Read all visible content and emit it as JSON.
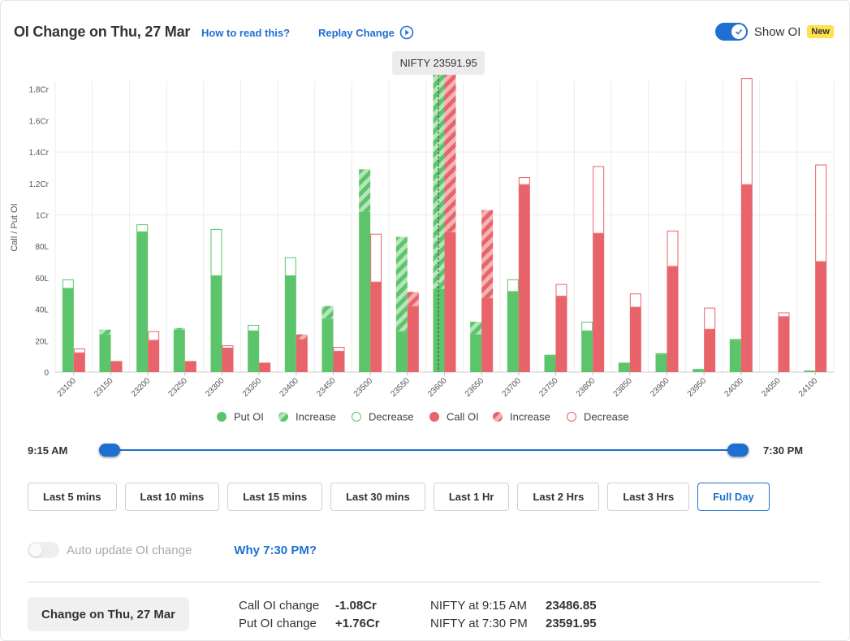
{
  "header": {
    "title": "OI Change on Thu, 27 Mar",
    "how_to_read": "How to read this?",
    "replay": "Replay Change",
    "show_oi_label": "Show OI",
    "new_badge": "New"
  },
  "chart_data": {
    "type": "bar",
    "ylabel": "Call / Put OI",
    "ylim": [
      0,
      18500000
    ],
    "yticks": [
      {
        "label": "0",
        "value": 0
      },
      {
        "label": "20L",
        "value": 2000000
      },
      {
        "label": "40L",
        "value": 4000000
      },
      {
        "label": "60L",
        "value": 6000000
      },
      {
        "label": "80L",
        "value": 8000000
      },
      {
        "label": "1Cr",
        "value": 10000000
      },
      {
        "label": "1.2Cr",
        "value": 12000000
      },
      {
        "label": "1.4Cr",
        "value": 14000000
      },
      {
        "label": "1.6Cr",
        "value": 16000000
      },
      {
        "label": "1.8Cr",
        "value": 18000000
      }
    ],
    "categories": [
      "23100",
      "23150",
      "23200",
      "23250",
      "23300",
      "23350",
      "23400",
      "23450",
      "23500",
      "23550",
      "23600",
      "23650",
      "23700",
      "23750",
      "23800",
      "23850",
      "23900",
      "23950",
      "24000",
      "24050",
      "24100"
    ],
    "series": [
      {
        "name": "Put OI",
        "color": "#5cc46a",
        "base": [
          5300000,
          2400000,
          8900000,
          2700000,
          6100000,
          2600000,
          6100000,
          3400000,
          10200000,
          2600000,
          5300000,
          2400000,
          5100000,
          1000000,
          2600000,
          600000,
          1100000,
          200000,
          2000000,
          0,
          100000
        ],
        "change": [
          600000,
          300000,
          500000,
          100000,
          3000000,
          400000,
          1200000,
          800000,
          2700000,
          6000000,
          14000000,
          800000,
          800000,
          100000,
          600000,
          0,
          100000,
          0,
          100000,
          0,
          0
        ]
      },
      {
        "name": "Call OI",
        "color": "#e8636a",
        "base": [
          1200000,
          700000,
          2000000,
          700000,
          1500000,
          600000,
          2100000,
          1300000,
          5700000,
          4200000,
          8900000,
          4700000,
          11900000,
          4800000,
          8800000,
          4100000,
          6700000,
          2700000,
          11900000,
          3500000,
          7000000
        ],
        "change": [
          300000,
          0,
          600000,
          0,
          200000,
          0,
          300000,
          300000,
          3100000,
          900000,
          10300000,
          5600000,
          500000,
          800000,
          4300000,
          900000,
          2300000,
          1400000,
          6800000,
          300000,
          6200000
        ]
      }
    ],
    "change_type": {
      "put": [
        "decrease",
        "increase",
        "decrease",
        "increase",
        "decrease",
        "decrease",
        "decrease",
        "increase",
        "increase",
        "increase",
        "increase",
        "increase",
        "decrease",
        "decrease",
        "decrease",
        "none",
        "decrease",
        "none",
        "decrease",
        "none",
        "none"
      ],
      "call": [
        "decrease",
        "none",
        "decrease",
        "none",
        "decrease",
        "none",
        "increase",
        "decrease",
        "decrease",
        "increase",
        "increase",
        "increase",
        "decrease",
        "decrease",
        "decrease",
        "decrease",
        "decrease",
        "decrease",
        "decrease",
        "decrease",
        "decrease"
      ]
    },
    "current_price": 23591.95,
    "current_label": "NIFTY 23591.95",
    "legend": [
      {
        "label": "Put OI",
        "kind": "solid",
        "color": "#5cc46a"
      },
      {
        "label": "Increase",
        "kind": "hatch",
        "color": "#5cc46a"
      },
      {
        "label": "Decrease",
        "kind": "outline",
        "color": "#5cc46a"
      },
      {
        "label": "Call OI",
        "kind": "solid",
        "color": "#e8636a"
      },
      {
        "label": "Increase",
        "kind": "hatch",
        "color": "#e8636a"
      },
      {
        "label": "Decrease",
        "kind": "outline",
        "color": "#e8636a"
      }
    ],
    "legend_position": "bottom",
    "grid": true
  },
  "slider": {
    "start": "9:15 AM",
    "end": "7:30 PM",
    "start_fraction": 0,
    "end_fraction": 1
  },
  "range_buttons": [
    {
      "label": "Last 5 mins",
      "active": false
    },
    {
      "label": "Last 10 mins",
      "active": false
    },
    {
      "label": "Last 15 mins",
      "active": false
    },
    {
      "label": "Last 30 mins",
      "active": false
    },
    {
      "label": "Last 1 Hr",
      "active": false
    },
    {
      "label": "Last 2 Hrs",
      "active": false
    },
    {
      "label": "Last 3 Hrs",
      "active": false
    },
    {
      "label": "Full Day",
      "active": true
    }
  ],
  "auto_update": {
    "label": "Auto update OI change",
    "enabled": false,
    "why": "Why 7:30 PM?"
  },
  "summary": {
    "button": "Change on Thu, 27 Mar",
    "call_label": "Call OI change",
    "call_value": "-1.08Cr",
    "put_label": "Put OI change",
    "put_value": "+1.76Cr",
    "start_label": "NIFTY at 9:15 AM",
    "start_value": "23486.85",
    "end_label": "NIFTY at 7:30 PM",
    "end_value": "23591.95"
  },
  "colors": {
    "accent": "#1f6fd1",
    "put": "#5cc46a",
    "call": "#e8636a",
    "badge": "#fde24f"
  }
}
